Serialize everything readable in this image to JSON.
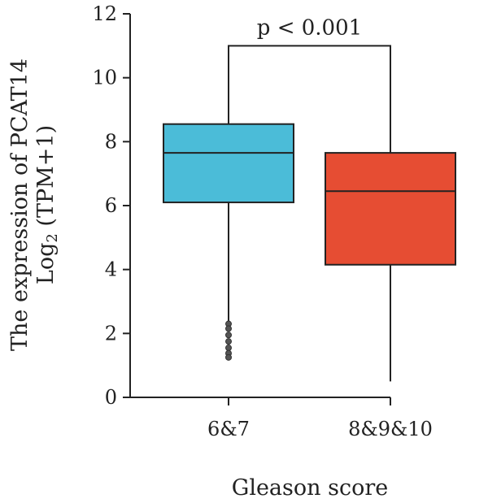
{
  "chart_data": {
    "type": "box",
    "categories": [
      "6&7",
      "8&9&10"
    ],
    "ylabel_line1": "The expression of PCAT14",
    "ylabel_line2_main": "Log",
    "ylabel_line2_sub": "2",
    "ylabel_line2_rest": " (TPM+1)",
    "xlabel": "Gleason score",
    "ylim": [
      0,
      12
    ],
    "yticks": [
      0,
      2,
      4,
      6,
      8,
      10,
      12
    ],
    "boxes": [
      {
        "category": "6&7",
        "q1": 6.1,
        "median": 7.65,
        "q3": 8.55,
        "whisker_low": 2.3,
        "whisker_high": 11.0,
        "color": "#4bbcd8",
        "outliers": [
          2.3,
          2.15,
          1.95,
          1.75,
          1.55,
          1.38,
          1.25
        ]
      },
      {
        "category": "8&9&10",
        "q1": 4.15,
        "median": 6.45,
        "q3": 7.65,
        "whisker_low": 0.5,
        "whisker_high": 11.0,
        "color": "#e64d33",
        "outliers": []
      }
    ],
    "significance": {
      "label": "p < 0.001",
      "y": 11.0
    }
  }
}
